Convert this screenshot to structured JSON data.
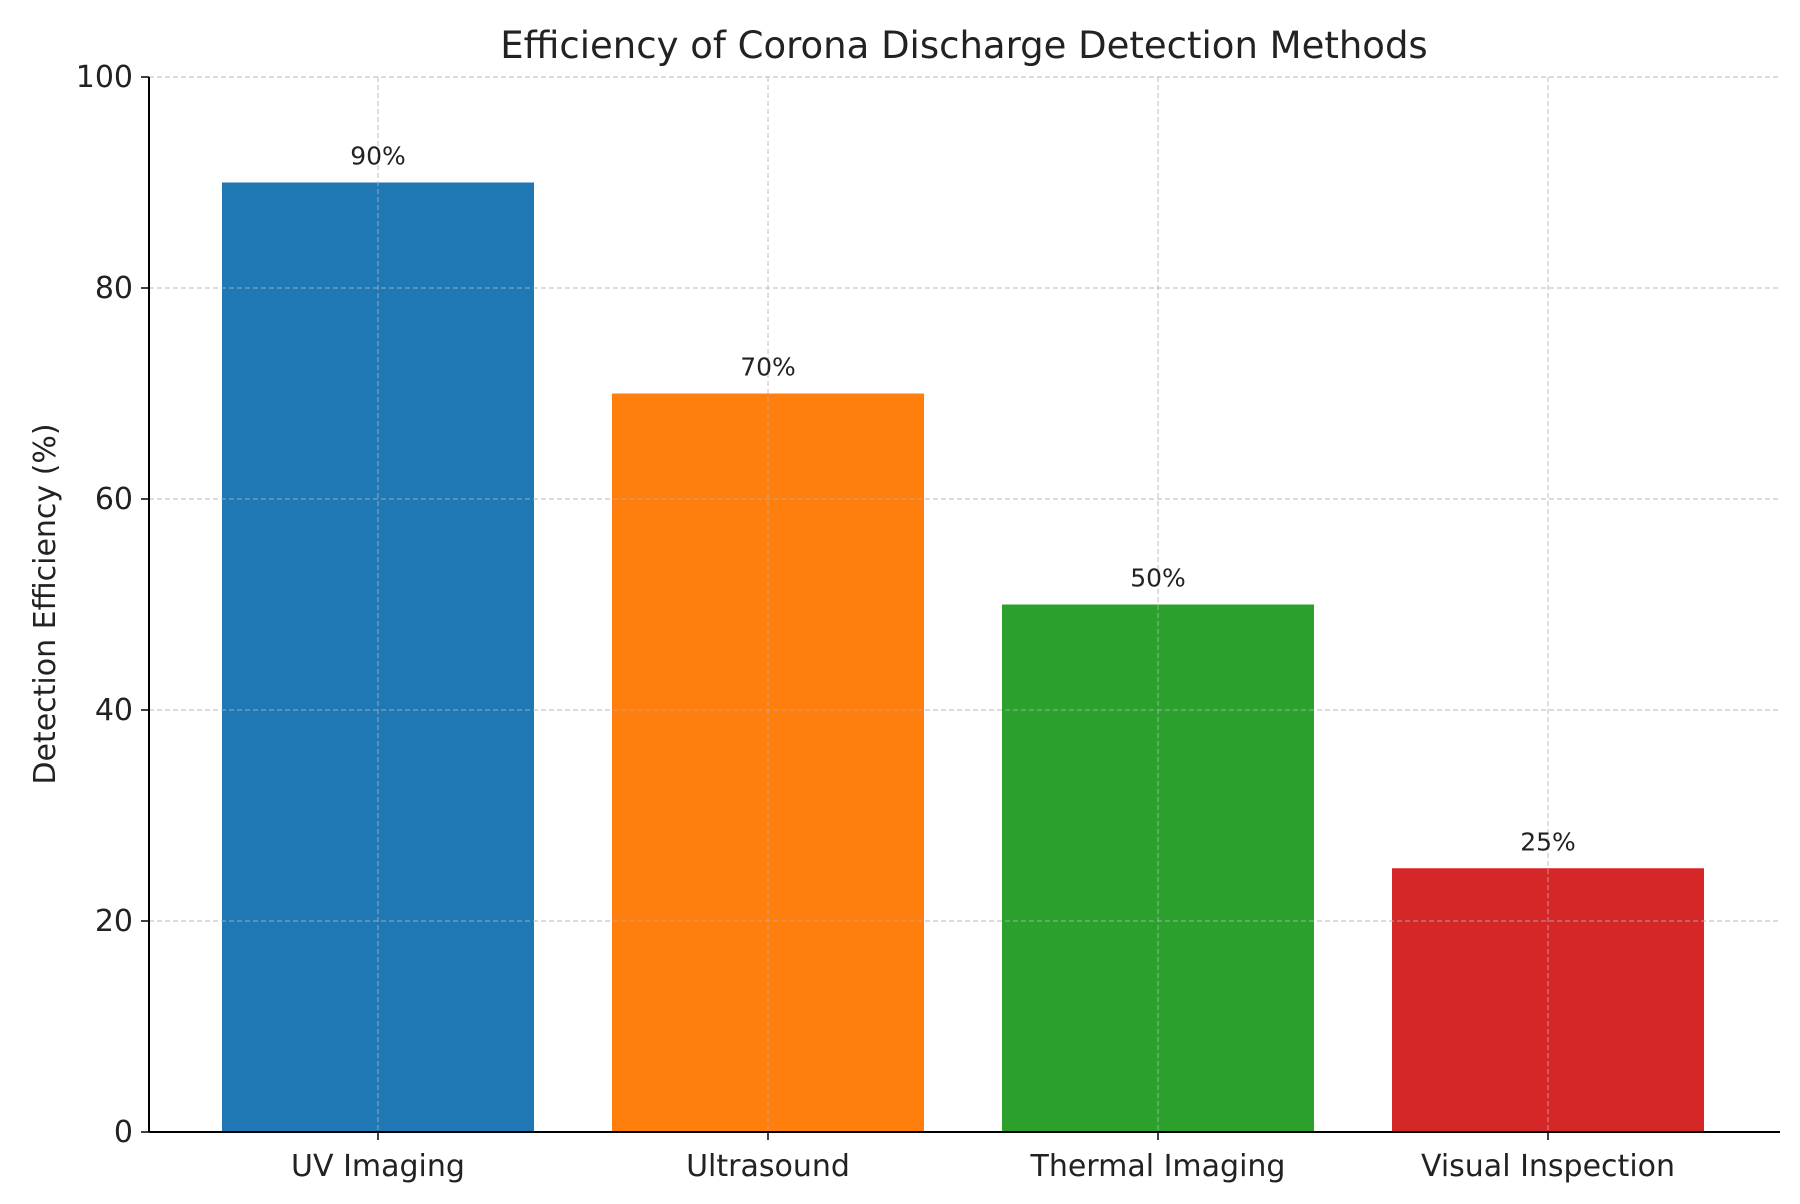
{
  "chart_data": {
    "type": "bar",
    "title": "Efficiency of Corona Discharge Detection Methods",
    "xlabel": "",
    "ylabel": "Detection Efficiency (%)",
    "categories": [
      "UV Imaging",
      "Ultrasound",
      "Thermal Imaging",
      "Visual Inspection"
    ],
    "values": [
      90,
      70,
      50,
      25
    ],
    "data_labels": [
      "90%",
      "70%",
      "50%",
      "25%"
    ],
    "colors": [
      "#1f77b4",
      "#ff7f0e",
      "#2ca02c",
      "#d62728"
    ],
    "ylim": [
      0,
      100
    ],
    "yticks": [
      0,
      20,
      40,
      60,
      80,
      100
    ],
    "grid": true,
    "legend": "none"
  }
}
